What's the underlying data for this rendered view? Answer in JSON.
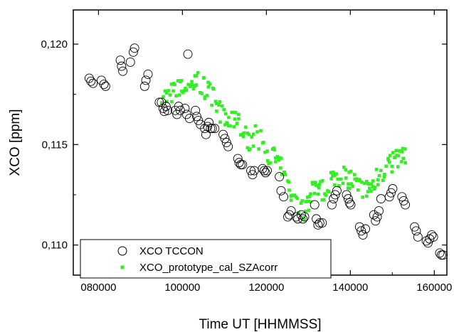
{
  "chart_data": {
    "type": "scatter",
    "xlabel": "Time UT [HHMMSS]",
    "ylabel": "XCO [ppm]",
    "xlim": [
      74000,
      163000
    ],
    "ylim": [
      0.1085,
      0.1217
    ],
    "x_ticks": [
      80000,
      100000,
      120000,
      140000,
      160000
    ],
    "x_tick_labels": [
      "080000",
      "100000",
      "120000",
      "140000",
      "160000"
    ],
    "y_ticks": [
      0.11,
      0.115,
      0.12
    ],
    "y_tick_labels": [
      "0,110",
      "0,115",
      "0,120"
    ],
    "legend_position": "bottom-left",
    "series": [
      {
        "name": "XCO TCCON",
        "marker": "open-circle",
        "color": "#000000",
        "points": [
          [
            77800,
            0.1183
          ],
          [
            78200,
            0.11815
          ],
          [
            78700,
            0.11805
          ],
          [
            80700,
            0.1182
          ],
          [
            81300,
            0.118
          ],
          [
            81700,
            0.1179
          ],
          [
            85200,
            0.1192
          ],
          [
            85500,
            0.1189
          ],
          [
            85800,
            0.11865
          ],
          [
            87600,
            0.1191
          ],
          [
            88300,
            0.1196
          ],
          [
            88600,
            0.1198
          ],
          [
            91000,
            0.1179
          ],
          [
            91300,
            0.1182
          ],
          [
            91800,
            0.1185
          ],
          [
            94500,
            0.1171
          ],
          [
            95000,
            0.1171
          ],
          [
            95400,
            0.1168
          ],
          [
            95700,
            0.11665
          ],
          [
            96100,
            0.1169
          ],
          [
            96500,
            0.1167
          ],
          [
            98300,
            0.1167
          ],
          [
            98700,
            0.1165
          ],
          [
            99100,
            0.1169
          ],
          [
            99500,
            0.1167
          ],
          [
            100600,
            0.1168
          ],
          [
            101000,
            0.1165
          ],
          [
            101300,
            0.1195
          ],
          [
            101700,
            0.1163
          ],
          [
            103100,
            0.1167
          ],
          [
            103400,
            0.1164
          ],
          [
            103800,
            0.1162
          ],
          [
            104300,
            0.116
          ],
          [
            105300,
            0.1158
          ],
          [
            105600,
            0.1155
          ],
          [
            106000,
            0.1159
          ],
          [
            106300,
            0.1161
          ],
          [
            106700,
            0.1158
          ],
          [
            107100,
            0.1158
          ],
          [
            107700,
            0.1158
          ],
          [
            109700,
            0.1155
          ],
          [
            110100,
            0.1153
          ],
          [
            110500,
            0.1151
          ],
          [
            110900,
            0.1149
          ],
          [
            113200,
            0.1143
          ],
          [
            113500,
            0.1141
          ],
          [
            113900,
            0.114
          ],
          [
            114300,
            0.114
          ],
          [
            116300,
            0.1137
          ],
          [
            116700,
            0.1135
          ],
          [
            117100,
            0.1137
          ],
          [
            119100,
            0.1138
          ],
          [
            119500,
            0.1137
          ],
          [
            119800,
            0.1136
          ],
          [
            120200,
            0.1137
          ],
          [
            123100,
            0.1134
          ],
          [
            123500,
            0.1127
          ],
          [
            124100,
            0.1124
          ],
          [
            125100,
            0.1114
          ],
          [
            125500,
            0.1115
          ],
          [
            125900,
            0.1117
          ],
          [
            127100,
            0.1114
          ],
          [
            127500,
            0.1113
          ],
          [
            128300,
            0.1115
          ],
          [
            128700,
            0.1113
          ],
          [
            129100,
            0.1114
          ],
          [
            131500,
            0.112
          ],
          [
            131900,
            0.1113
          ],
          [
            132300,
            0.111
          ],
          [
            132700,
            0.1111
          ],
          [
            133300,
            0.1111
          ],
          [
            135600,
            0.112
          ],
          [
            136000,
            0.1123
          ],
          [
            136400,
            0.1125
          ],
          [
            136800,
            0.1127
          ],
          [
            139100,
            0.1125
          ],
          [
            139500,
            0.1123
          ],
          [
            139800,
            0.1121
          ],
          [
            140100,
            0.112
          ],
          [
            142200,
            0.1109
          ],
          [
            142600,
            0.1107
          ],
          [
            143000,
            0.1105
          ],
          [
            143600,
            0.1108
          ],
          [
            145600,
            0.1115
          ],
          [
            146000,
            0.1112
          ],
          [
            146400,
            0.1114
          ],
          [
            146800,
            0.1117
          ],
          [
            147300,
            0.1123
          ],
          [
            149300,
            0.1124
          ],
          [
            149700,
            0.1126
          ],
          [
            150100,
            0.1128
          ],
          [
            152300,
            0.1124
          ],
          [
            152700,
            0.1122
          ],
          [
            153100,
            0.112
          ],
          [
            155300,
            0.1109
          ],
          [
            155700,
            0.1107
          ],
          [
            156100,
            0.1104
          ],
          [
            158100,
            0.1102
          ],
          [
            158500,
            0.1101
          ],
          [
            158900,
            0.1103
          ],
          [
            159400,
            0.1105
          ],
          [
            159800,
            0.1104
          ],
          [
            161300,
            0.1096
          ],
          [
            161700,
            0.1095
          ],
          [
            162100,
            0.1095
          ]
        ]
      },
      {
        "name": "XCO_prototype_cal_SZAcorr",
        "marker": "filled-square",
        "color": "#33ee22",
        "anchors": [
          [
            95000,
            0.1173
          ],
          [
            97000,
            0.1175
          ],
          [
            99000,
            0.1177
          ],
          [
            101000,
            0.1178
          ],
          [
            103000,
            0.1181
          ],
          [
            105000,
            0.1179
          ],
          [
            107000,
            0.1175
          ],
          [
            108500,
            0.1168
          ],
          [
            110000,
            0.1163
          ],
          [
            111500,
            0.116
          ],
          [
            113000,
            0.1164
          ],
          [
            114500,
            0.1157
          ],
          [
            116000,
            0.1152
          ],
          [
            117500,
            0.1154
          ],
          [
            119000,
            0.1151
          ],
          [
            120500,
            0.1146
          ],
          [
            122000,
            0.1144
          ],
          [
            123500,
            0.1138
          ],
          [
            125000,
            0.1129
          ],
          [
            126500,
            0.1122
          ],
          [
            128000,
            0.1116
          ],
          [
            129500,
            0.1119
          ],
          [
            131000,
            0.1127
          ],
          [
            132500,
            0.1126
          ],
          [
            134000,
            0.1128
          ],
          [
            135500,
            0.1133
          ],
          [
            137000,
            0.1134
          ],
          [
            138500,
            0.1135
          ],
          [
            140000,
            0.1133
          ],
          [
            141500,
            0.113
          ],
          [
            143000,
            0.1127
          ],
          [
            144500,
            0.1128
          ],
          [
            146000,
            0.1133
          ],
          [
            147500,
            0.1136
          ],
          [
            149000,
            0.1139
          ],
          [
            150500,
            0.1143
          ],
          [
            152000,
            0.1145
          ],
          [
            153000,
            0.1143
          ]
        ],
        "step": 400,
        "spread": 0.00055
      }
    ]
  }
}
